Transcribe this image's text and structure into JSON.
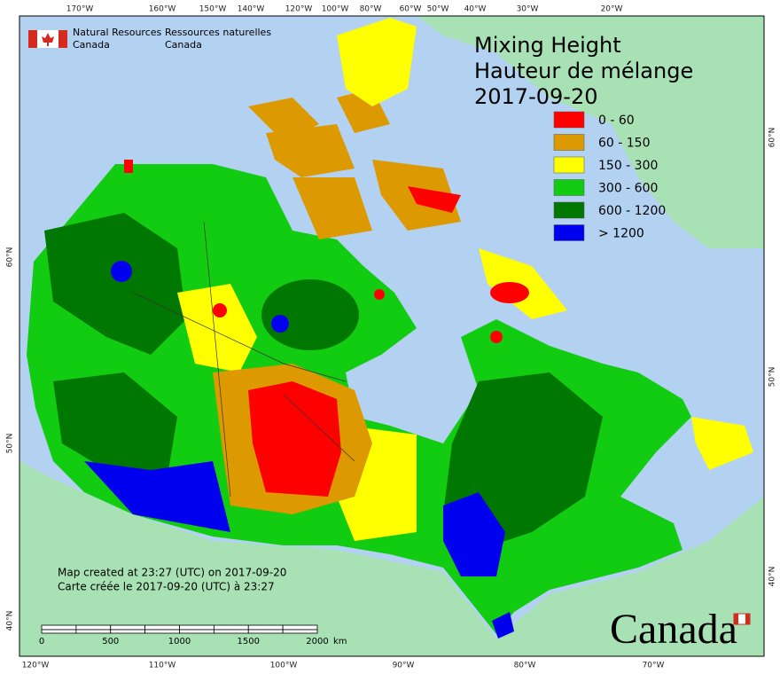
{
  "header": {
    "agency_en": "Natural Resources",
    "agency_en_2": "Canada",
    "agency_fr": "Ressources naturelles",
    "agency_fr_2": "Canada"
  },
  "title": [
    "Mixing Height",
    "Hauteur de mélange",
    "2017-09-20"
  ],
  "legend": [
    {
      "label": "0 - 60",
      "color": "#ff0000"
    },
    {
      "label": "60 - 150",
      "color": "#dd9900"
    },
    {
      "label": "150 - 300",
      "color": "#ffff00"
    },
    {
      "label": "300 - 600",
      "color": "#11cc11"
    },
    {
      "label": "600 - 1200",
      "color": "#007700"
    },
    {
      "label": "> 1200",
      "color": "#0000ee"
    }
  ],
  "top_labels": [
    "170°W",
    "160°W",
    "150°W",
    "140°W",
    "120°W",
    "100°W",
    "80°W",
    "60°W",
    "50°W",
    "40°W",
    "30°W",
    "20°W"
  ],
  "bottom_labels": [
    "120°W",
    "110°W",
    "100°W",
    "90°W",
    "80°W",
    "70°W"
  ],
  "left_labels": [
    "60°N",
    "50°N",
    "40°N"
  ],
  "right_labels": [
    "60°N",
    "50°N",
    "40°N"
  ],
  "credits": [
    "Map created at 23:27 (UTC) on 2017-09-20",
    "Carte créée le 2017-09-20 (UTC) à 23:27"
  ],
  "scale": {
    "labels": [
      0,
      500,
      1000,
      1500,
      2000
    ],
    "unit": "km"
  },
  "wordmark": "Canada"
}
